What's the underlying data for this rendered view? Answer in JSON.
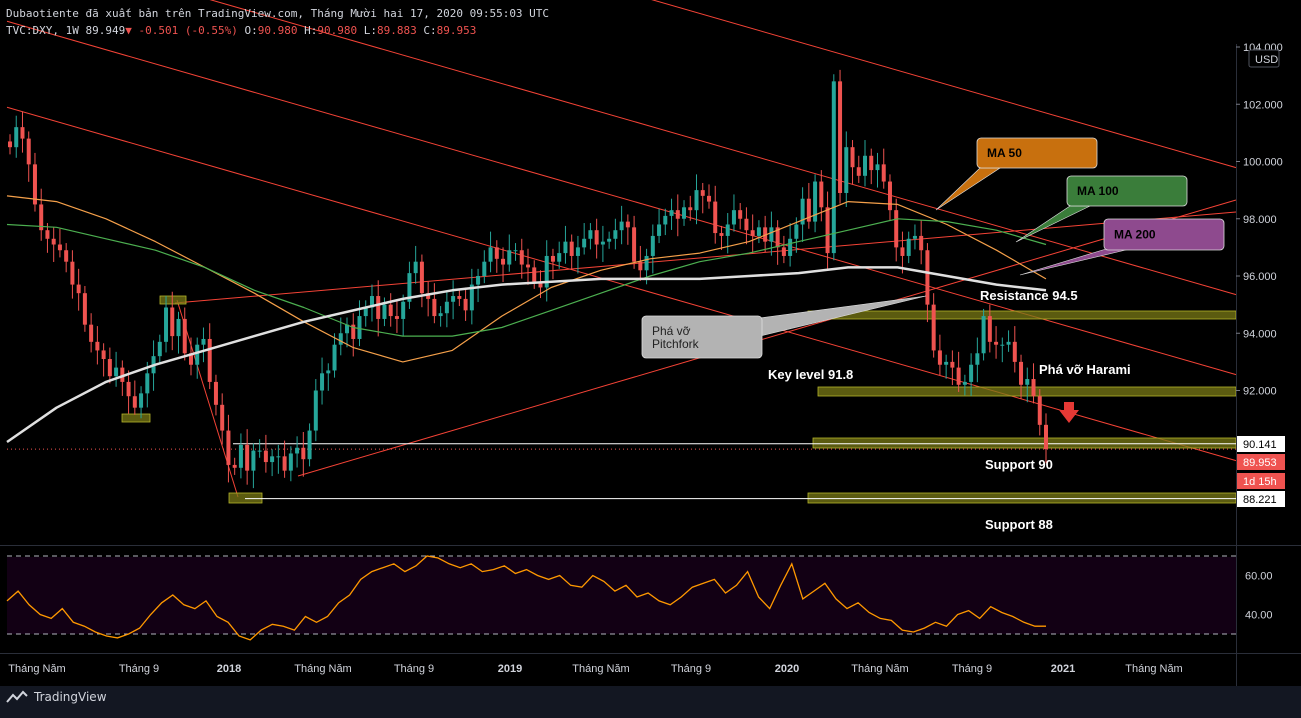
{
  "header": {
    "line1": "Dubaotiente đã xuất bản trên TradingView.com, Tháng Mười hai 17, 2020 09:55:03 UTC",
    "symbol": "TVC:DXY, 1W",
    "last": "89.949",
    "change": "-0.501 (-0.55%)",
    "o_label": "O:",
    "o": "90.980",
    "h_label": "H:",
    "h": "90.980",
    "l_label": "L:",
    "l": "89.883",
    "c_label": "C:",
    "c": "89.953"
  },
  "currency": "USD",
  "price_labels": {
    "support_level": "90.141",
    "last_price": "89.953",
    "countdown": "1d 15h",
    "support_low": "88.221"
  },
  "annotations": {
    "ma50": "MA 50",
    "ma100": "MA 100",
    "ma200": "MA 200",
    "resistance": "Resistance 94.5",
    "pitchfork_break": "Phá vỡ Pitchfork",
    "key_level": "Key level 91.8",
    "harami": "Phá vỡ Harami",
    "support90": "Support 90",
    "support88": "Support 88"
  },
  "footer": {
    "brand": "TradingView"
  },
  "colors": {
    "bull": "#26a69a",
    "bear": "#ef5350",
    "ma50": "#f5a04a",
    "ma100": "#4caf50",
    "ma200": "#e0e0e0",
    "pitchfork": "#f44336",
    "zone": "#7a7a16",
    "rsi": "#ff9800",
    "ma50_box": "#c8700e",
    "ma100_box": "#3a7d3a",
    "ma200_box": "#8e4a8e"
  },
  "chart_data": {
    "type": "candlestick",
    "title": "TVC:DXY, 1W",
    "ylim": [
      86.5,
      104
    ],
    "y_ticks": [
      104,
      102,
      100,
      98,
      96,
      94,
      92
    ],
    "y_tick_labels": [
      "104.000",
      "102.000",
      "100.000",
      "98.000",
      "96.000",
      "94.000",
      "92.000"
    ],
    "x_ticks": [
      "Tháng Năm",
      "Tháng 9",
      "2018",
      "Tháng Năm",
      "Tháng 9",
      "2019",
      "Tháng Năm",
      "Tháng 9",
      "2020",
      "Tháng Năm",
      "Tháng 9",
      "2021",
      "Tháng Năm"
    ],
    "x_tick_dates": [
      "2017-05",
      "2017-09",
      "2018-01",
      "2018-05",
      "2018-09",
      "2019-01",
      "2019-05",
      "2019-09",
      "2020-01",
      "2020-05",
      "2020-09",
      "2021-01",
      "2021-05"
    ],
    "price_path_weekly_close": [
      100.5,
      101.2,
      100.8,
      99.9,
      98.5,
      97.6,
      97.3,
      97.1,
      96.9,
      96.5,
      95.7,
      95.4,
      94.3,
      93.7,
      93.4,
      93.1,
      92.5,
      92.8,
      92.3,
      91.8,
      91.4,
      91.9,
      92.6,
      93.2,
      93.7,
      94.9,
      93.9,
      94.5,
      93.3,
      92.9,
      93.6,
      93.8,
      92.3,
      91.5,
      90.6,
      89.4,
      89.3,
      90.1,
      89.2,
      89.9,
      89.9,
      89.5,
      89.7,
      89.7,
      89.2,
      89.8,
      90.0,
      89.6,
      90.6,
      92.0,
      92.6,
      92.7,
      93.6,
      94.0,
      94.3,
      93.8,
      94.6,
      94.9,
      95.3,
      94.5,
      95.0,
      94.6,
      94.5,
      95.1,
      96.1,
      96.5,
      95.4,
      95.2,
      94.6,
      94.7,
      95.1,
      95.3,
      95.2,
      94.8,
      95.7,
      96.0,
      96.5,
      97.0,
      96.6,
      96.4,
      96.9,
      96.9,
      96.4,
      96.3,
      95.8,
      95.6,
      96.7,
      96.5,
      96.8,
      97.2,
      96.7,
      97.0,
      97.3,
      97.6,
      97.1,
      97.2,
      97.3,
      97.6,
      97.9,
      97.7,
      96.5,
      96.2,
      96.7,
      97.4,
      97.8,
      98.1,
      98.3,
      98.0,
      98.4,
      98.3,
      99.0,
      98.8,
      98.6,
      97.5,
      97.4,
      97.8,
      98.3,
      98.0,
      97.6,
      97.4,
      97.7,
      97.2,
      97.7,
      97.0,
      96.7,
      97.3,
      97.8,
      98.7,
      97.9,
      99.3,
      98.4,
      96.8,
      102.8,
      98.9,
      100.5,
      99.8,
      99.5,
      100.2,
      99.7,
      99.9,
      99.3,
      98.3,
      97.0,
      96.7,
      97.3,
      97.4,
      96.9,
      95.0,
      93.4,
      92.9,
      93.0,
      92.8,
      92.2,
      92.3,
      92.9,
      93.3,
      94.6,
      93.7,
      93.6,
      93.6,
      93.7,
      93.0,
      92.2,
      92.4,
      91.8,
      90.8,
      89.95
    ],
    "moving_averages": [
      {
        "name": "MA 50",
        "values": [
          98.8,
          98.6,
          98.0,
          97.2,
          96.3,
          95.4,
          94.4,
          93.5,
          93.0,
          93.4,
          94.6,
          95.6,
          96.2,
          96.6,
          96.8,
          97.2,
          97.9,
          98.6,
          98.5,
          97.8,
          96.9,
          95.9
        ]
      },
      {
        "name": "MA 100",
        "values": [
          97.8,
          97.7,
          97.3,
          96.9,
          96.3,
          95.5,
          94.9,
          94.2,
          93.9,
          93.9,
          94.2,
          94.8,
          95.4,
          96.0,
          96.5,
          96.8,
          97.2,
          97.6,
          98.0,
          97.9,
          97.6,
          97.1
        ]
      },
      {
        "name": "MA 200",
        "values": [
          90.2,
          91.4,
          92.3,
          92.9,
          93.4,
          93.9,
          94.4,
          94.8,
          95.2,
          95.5,
          95.7,
          95.8,
          95.9,
          95.9,
          95.9,
          96.0,
          96.1,
          96.3,
          96.3,
          96.0,
          95.7,
          95.5
        ]
      }
    ],
    "levels": [
      {
        "name": "Resistance 94.5",
        "value": 94.5
      },
      {
        "name": "Key level 91.8",
        "value": 91.8
      },
      {
        "name": "Support 90",
        "value": 90.141
      },
      {
        "name": "Support 88",
        "value": 88.221
      }
    ],
    "rsi": {
      "ylim": [
        25,
        75
      ],
      "y_ticks": [
        60,
        40
      ],
      "y_tick_labels": [
        "60.00",
        "40.00"
      ],
      "bands": [
        70,
        30
      ],
      "values": [
        47,
        52,
        45,
        40,
        38,
        43,
        36,
        34,
        31,
        29,
        28,
        30,
        33,
        40,
        46,
        50,
        45,
        43,
        47,
        39,
        36,
        29,
        27,
        32,
        35,
        34,
        32,
        39,
        36,
        39,
        46,
        50,
        58,
        62,
        64,
        66,
        62,
        65,
        70,
        69,
        66,
        64,
        66,
        62,
        63,
        65,
        61,
        63,
        60,
        58,
        60,
        55,
        54,
        60,
        57,
        52,
        55,
        49,
        51,
        47,
        45,
        49,
        54,
        56,
        58,
        51,
        55,
        62,
        49,
        43,
        55,
        66,
        48,
        52,
        56,
        48,
        43,
        46,
        41,
        38,
        37,
        32,
        31,
        33,
        36,
        34,
        40,
        42,
        38,
        44,
        41,
        39,
        36,
        34,
        34
      ]
    }
  }
}
